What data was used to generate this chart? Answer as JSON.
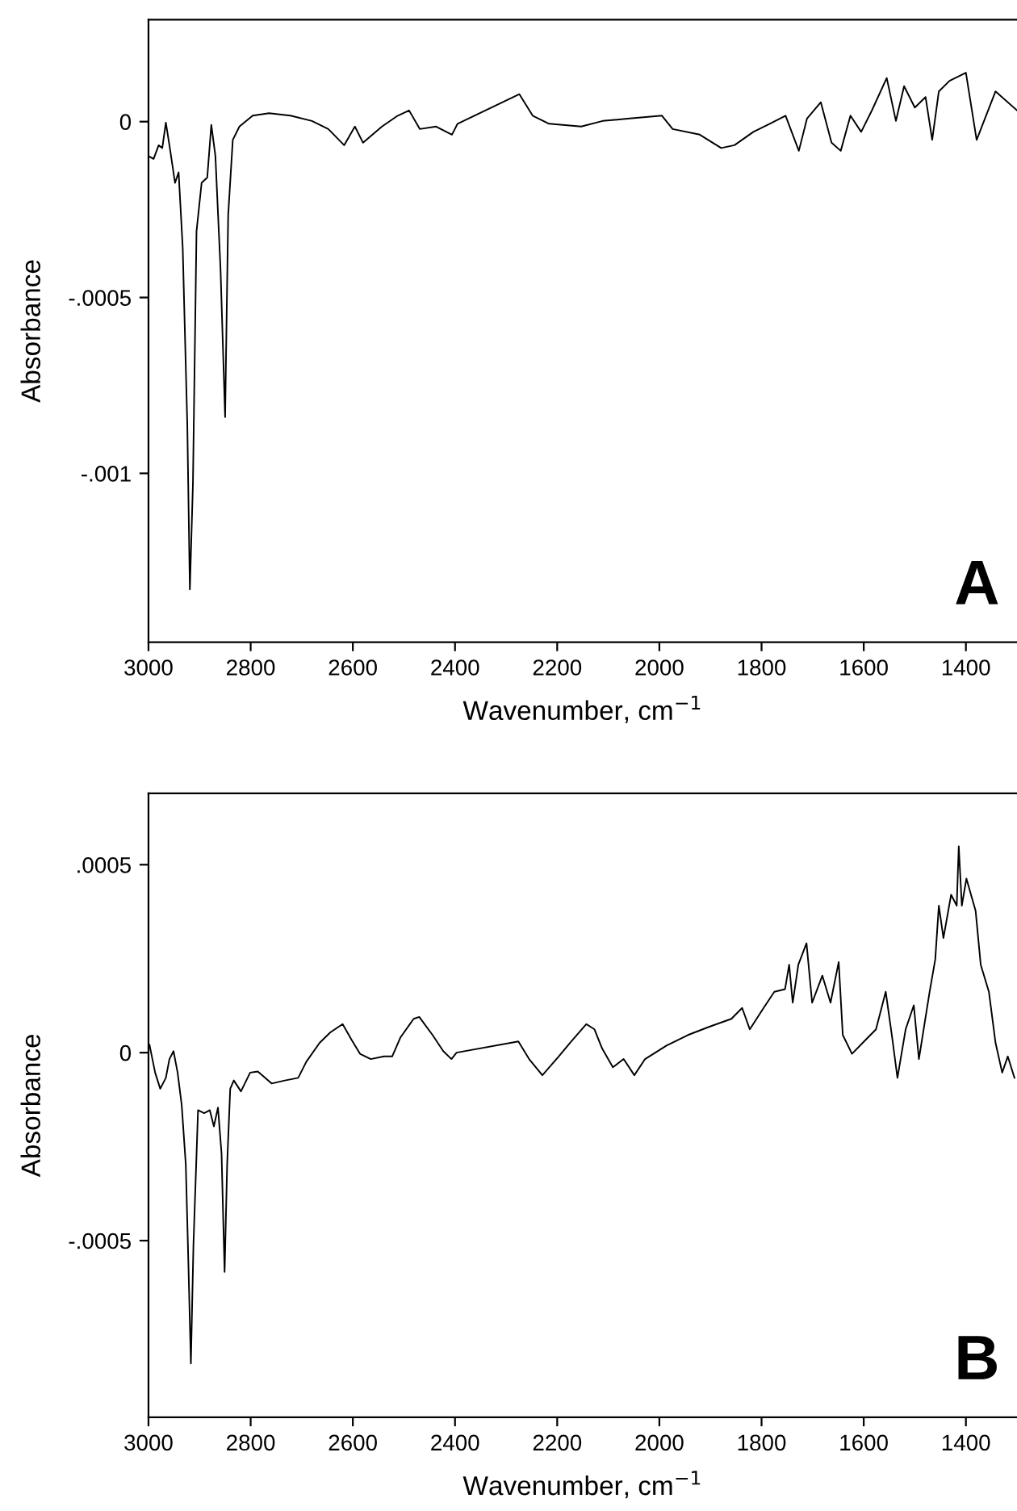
{
  "chart_data": [
    {
      "type": "line",
      "xlabel": "Wavenumber, cm$^{−1}$",
      "ylabel": "Absorbance",
      "annotations": [
        "A"
      ],
      "xlim": [
        3000,
        1300
      ],
      "ylim": [
        -0.00148,
        0.00029
      ],
      "xticks": [
        3000,
        2800,
        2600,
        2400,
        2200,
        2000,
        1800,
        1600,
        1400
      ],
      "yticks": [
        0,
        {
          "value": -0.0005,
          "label": "-.0005"
        },
        {
          "value": -0.001,
          "label": "-.001"
        }
      ],
      "marker": "none",
      "line_style": "solid",
      "series": [
        {
          "color": "#000000",
          "x": [
            3000,
            2990,
            2980,
            2973,
            2966,
            2959,
            2948,
            2941,
            2933,
            2924,
            2919,
            2913,
            2906,
            2896,
            2885,
            2877,
            2869,
            2859,
            2850,
            2844,
            2835,
            2822,
            2796,
            2764,
            2722,
            2680,
            2648,
            2617,
            2596,
            2580,
            2543,
            2512,
            2490,
            2469,
            2437,
            2406,
            2395,
            2274,
            2248,
            2216,
            2153,
            2111,
            2058,
            1995,
            1974,
            1921,
            1879,
            1853,
            1816,
            1784,
            1753,
            1727,
            1711,
            1684,
            1663,
            1645,
            1626,
            1605,
            1584,
            1555,
            1537,
            1521,
            1500,
            1479,
            1466,
            1453,
            1432,
            1400,
            1379,
            1342,
            1300
          ],
          "values": [
            -9.8e-05,
            -0.000106,
            -6.7e-05,
            -7.5e-05,
            -3e-06,
            -6.7e-05,
            -0.000174,
            -0.000144,
            -0.000358,
            -0.000863,
            -0.00133,
            -0.00103,
            -0.000312,
            -0.000174,
            -0.000159,
            -9e-06,
            -9.8e-05,
            -0.000419,
            -0.00084,
            -0.000266,
            -5.2e-05,
            -1.4e-05,
            1.7e-05,
            2.4e-05,
            1.7e-05,
            2e-06,
            -2.1e-05,
            -6.7e-05,
            -1.4e-05,
            -6e-05,
            -1.4e-05,
            1.7e-05,
            3.2e-05,
            -2.1e-05,
            -1.4e-05,
            -3.7e-05,
            -6e-06,
            7.8e-05,
            1.7e-05,
            -6e-06,
            -1.4e-05,
            2e-06,
            9e-06,
            1.7e-05,
            -2.1e-05,
            -3.7e-05,
            -7.5e-05,
            -6.7e-05,
            -2.9e-05,
            -6e-06,
            1.7e-05,
            -8.3e-05,
            9e-06,
            5.5e-05,
            -6e-05,
            -8.3e-05,
            1.7e-05,
            -2.9e-05,
            3.2e-05,
            0.000124,
            2e-06,
            0.000101,
            4e-05,
            7e-05,
            -5.2e-05,
            8.6e-05,
            0.000116,
            0.000139,
            -5.2e-05,
            8.6e-05,
            3.2e-05
          ]
        }
      ]
    },
    {
      "type": "line",
      "xlabel": "Wavenumber, cm$^{−1}$",
      "ylabel": "Absorbance",
      "annotations": [
        "B"
      ],
      "xlim": [
        3000,
        1300
      ],
      "ylim": [
        -0.00097,
        0.00069
      ],
      "xticks": [
        3000,
        2800,
        2600,
        2400,
        2200,
        2000,
        1800,
        1600,
        1400
      ],
      "yticks": [
        {
          "value": 0.0005,
          "label": ".0005"
        },
        0,
        {
          "value": -0.0005,
          "label": "-.0005"
        }
      ],
      "marker": "none",
      "line_style": "solid",
      "series": [
        {
          "color": "#000000",
          "x": [
            2998,
            2987,
            2977,
            2966,
            2959,
            2951,
            2943,
            2935,
            2927,
            2922,
            2917,
            2912,
            2903,
            2891,
            2880,
            2872,
            2864,
            2857,
            2851,
            2846,
            2840,
            2833,
            2819,
            2801,
            2786,
            2759,
            2733,
            2707,
            2691,
            2665,
            2644,
            2620,
            2602,
            2586,
            2565,
            2539,
            2523,
            2507,
            2481,
            2470,
            2444,
            2423,
            2407,
            2397,
            2276,
            2255,
            2229,
            2197,
            2175,
            2143,
            2127,
            2112,
            2091,
            2070,
            2049,
            2028,
            1986,
            1944,
            1902,
            1859,
            1838,
            1823,
            1796,
            1775,
            1754,
            1746,
            1739,
            1728,
            1712,
            1701,
            1681,
            1665,
            1649,
            1641,
            1623,
            1597,
            1576,
            1557,
            1545,
            1534,
            1518,
            1502,
            1492,
            1471,
            1460,
            1453,
            1444,
            1429,
            1418,
            1414,
            1408,
            1399,
            1381,
            1371,
            1355,
            1342,
            1329,
            1318,
            1305
          ],
          "values": [
            2.1e-05,
            -5.3e-05,
            -9.6e-05,
            -6.7e-05,
            -1.7e-05,
            4e-06,
            -5.3e-05,
            -0.000139,
            -0.000297,
            -0.000554,
            -0.000827,
            -0.000512,
            -0.000153,
            -0.000161,
            -0.000153,
            -0.000196,
            -0.000146,
            -0.000268,
            -0.000583,
            -0.000297,
            -9.6e-05,
            -7.4e-05,
            -0.000103,
            -5.3e-05,
            -5e-05,
            -8.2e-05,
            -7.4e-05,
            -6.7e-05,
            -2.4e-05,
            2.6e-05,
            5.4e-05,
            7.6e-05,
            3.3e-05,
            -3e-06,
            -1.7e-05,
            -1e-05,
            -1e-05,
            4e-05,
            9e-05,
            9.5e-05,
            4.7e-05,
            4e-06,
            -1.7e-05,
            0,
            3e-05,
            -1.7e-05,
            -6e-05,
            -1e-05,
            2.6e-05,
            7.6e-05,
            6.2e-05,
            1.1e-05,
            -3.9e-05,
            -1.7e-05,
            -6e-05,
            -1.7e-05,
            1.9e-05,
            4.7e-05,
            6.9e-05,
            9e-05,
            0.000119,
            6.2e-05,
            0.000119,
            0.000162,
            0.000169,
            0.000234,
            0.000133,
            0.000234,
            0.000291,
            0.000133,
            0.000205,
            0.000133,
            0.000241,
            4.7e-05,
            -3e-06,
            3.3e-05,
            6.2e-05,
            0.000162,
            4.7e-05,
            -6.7e-05,
            6.2e-05,
            0.000126,
            -1.7e-05,
            0.000162,
            0.000248,
            0.000391,
            0.000305,
            0.00042,
            0.000391,
            0.000549,
            0.000391,
            0.000463,
            0.000377,
            0.000234,
            0.000162,
            2.6e-05,
            -5.3e-05,
            -1e-05,
            -6.7e-05
          ]
        }
      ]
    }
  ]
}
